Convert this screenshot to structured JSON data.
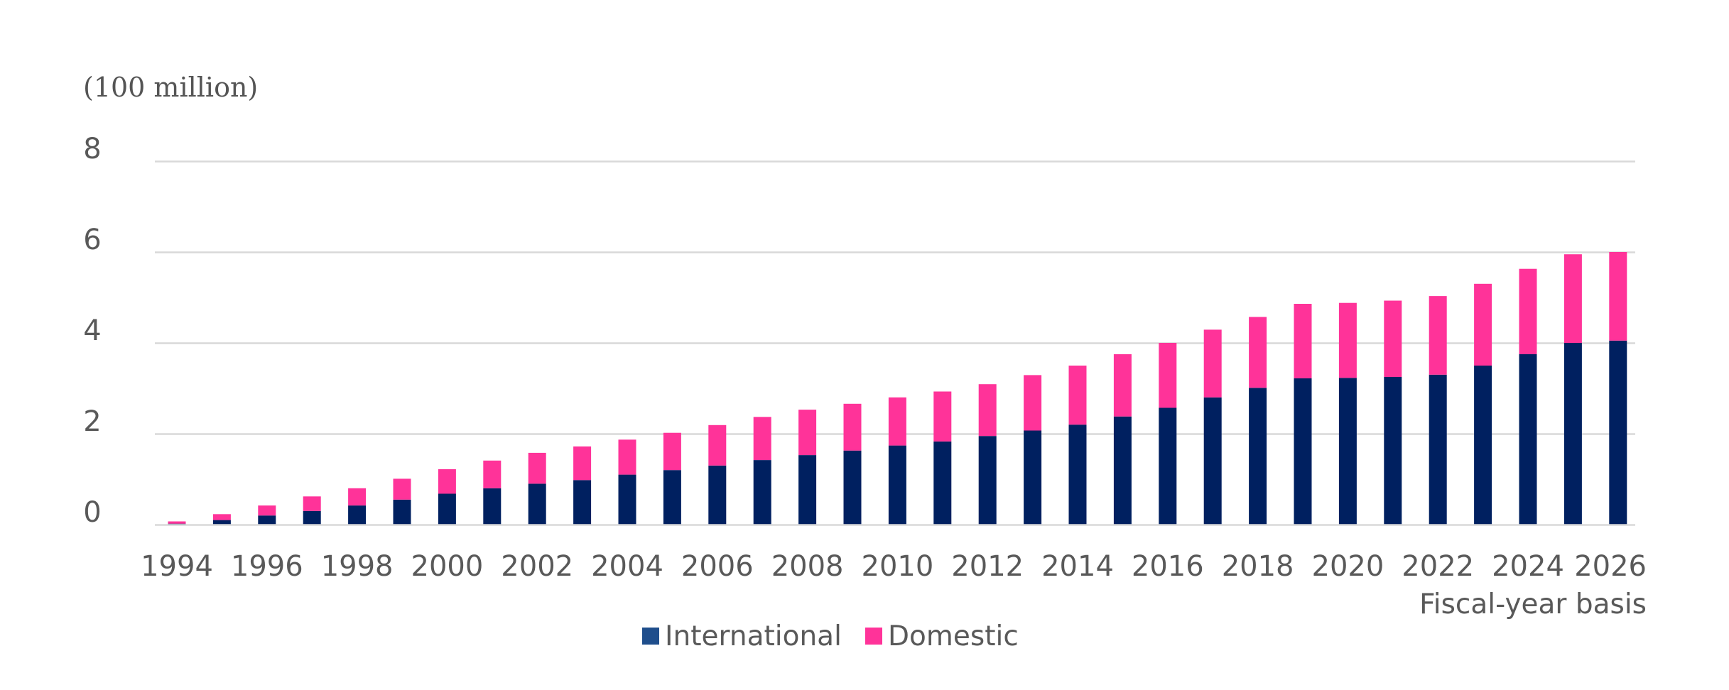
{
  "chart_data": {
    "type": "bar",
    "stacked": true,
    "unit_label": "(100 million)",
    "xlabel": "Fiscal-year basis",
    "ylim": [
      0,
      8
    ],
    "yticks": [
      0,
      2,
      4,
      6,
      8
    ],
    "categories": [
      "1994",
      "1995",
      "1996",
      "1997",
      "1998",
      "1999",
      "2000",
      "2001",
      "2002",
      "2003",
      "2004",
      "2005",
      "2006",
      "2007",
      "2008",
      "2009",
      "2010",
      "2011",
      "2012",
      "2013",
      "2014",
      "2015",
      "2016",
      "2017",
      "2018",
      "2019",
      "2020",
      "2021",
      "2022",
      "2023",
      "2024",
      "2025",
      "2026"
    ],
    "xtick_labels": [
      "1994",
      "1996",
      "1998",
      "2000",
      "2002",
      "2004",
      "2006",
      "2008",
      "2010",
      "2012",
      "2014",
      "2016",
      "2018",
      "2020",
      "2022",
      "2024",
      "2026"
    ],
    "series": [
      {
        "name": "International",
        "color": "#002060",
        "values": [
          0.02,
          0.1,
          0.2,
          0.3,
          0.42,
          0.55,
          0.68,
          0.8,
          0.9,
          0.98,
          1.1,
          1.2,
          1.3,
          1.42,
          1.53,
          1.63,
          1.74,
          1.83,
          1.95,
          2.07,
          2.2,
          2.38,
          2.57,
          2.8,
          3.01,
          3.22,
          3.23,
          3.25,
          3.3,
          3.5,
          3.75,
          4.0,
          4.05
        ]
      },
      {
        "name": "Domestic",
        "color": "#ff3399",
        "values": [
          0.05,
          0.13,
          0.22,
          0.32,
          0.38,
          0.46,
          0.54,
          0.61,
          0.68,
          0.74,
          0.77,
          0.82,
          0.89,
          0.95,
          1.0,
          1.03,
          1.06,
          1.1,
          1.14,
          1.22,
          1.3,
          1.37,
          1.43,
          1.49,
          1.56,
          1.64,
          1.65,
          1.68,
          1.73,
          1.8,
          1.88,
          1.95,
          1.95
        ]
      }
    ],
    "legend_position": "bottom-center",
    "grid": true
  }
}
